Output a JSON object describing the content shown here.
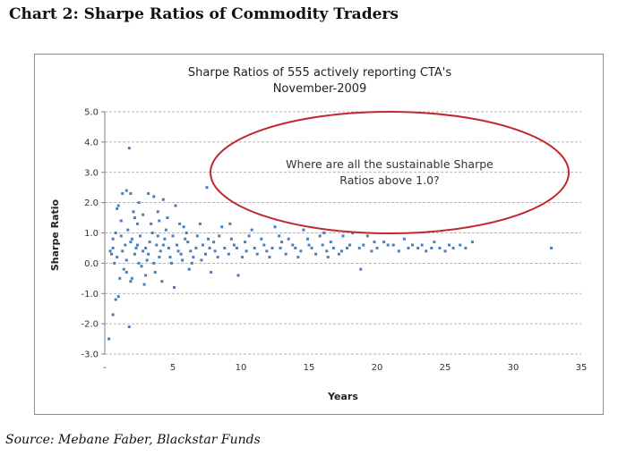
{
  "heading": "Chart 2:  Sharpe Ratios of Commodity Traders",
  "source": "Source: Mebane Faber, Blackstar Funds",
  "colors": {
    "point": "#4a7ebb",
    "ellipse": "#c0282d",
    "grid": "#9a9a9a",
    "axis": "#7f7f7f"
  },
  "chart_data": {
    "type": "scatter",
    "title": [
      "Sharpe Ratios of 555 actively reporting CTA's",
      "November-2009"
    ],
    "xlabel": "Years",
    "ylabel": "Sharpe Ratio",
    "xlim": [
      0,
      35
    ],
    "ylim": [
      -3,
      5
    ],
    "x_ticks": [
      0,
      5,
      10,
      15,
      20,
      25,
      30,
      35
    ],
    "x_tick_labels": [
      "-",
      "5",
      "10",
      "15",
      "20",
      "25",
      "30",
      "35"
    ],
    "y_ticks": [
      5,
      4,
      3,
      2,
      1,
      0,
      -1,
      -2,
      -3
    ],
    "y_tick_labels": [
      "5.0",
      "4.0",
      "3.0",
      "2.0",
      "1.0",
      "0.0",
      "-1.0",
      "-2.0",
      "-3.0"
    ],
    "grid": "horizontal dashed",
    "annotation": [
      "Where are all the sustainable Sharpe",
      "Ratios above 1.0?"
    ],
    "series": [
      {
        "name": "CTA",
        "points": [
          [
            0.3,
            -2.5
          ],
          [
            0.6,
            -1.7
          ],
          [
            0.8,
            -1.2
          ],
          [
            1.0,
            -1.1
          ],
          [
            1.8,
            -2.1
          ],
          [
            1.8,
            3.8
          ],
          [
            7.5,
            2.5
          ],
          [
            1.3,
            2.3
          ],
          [
            1.6,
            2.4
          ],
          [
            1.9,
            2.3
          ],
          [
            3.2,
            2.3
          ],
          [
            3.6,
            2.2
          ],
          [
            4.3,
            2.1
          ],
          [
            2.5,
            2.0
          ],
          [
            5.2,
            1.9
          ],
          [
            0.9,
            1.8
          ],
          [
            2.1,
            1.7
          ],
          [
            2.8,
            1.6
          ],
          [
            3.9,
            1.7
          ],
          [
            4.6,
            1.5
          ],
          [
            1.2,
            1.4
          ],
          [
            2.4,
            1.3
          ],
          [
            3.4,
            1.3
          ],
          [
            5.8,
            1.2
          ],
          [
            1.0,
            1.9
          ],
          [
            2.2,
            1.5
          ],
          [
            4.0,
            1.4
          ],
          [
            4.2,
            -0.6
          ],
          [
            5.1,
            -0.8
          ],
          [
            1.6,
            -0.3
          ],
          [
            2.0,
            -0.5
          ],
          [
            3.0,
            -0.4
          ],
          [
            0.7,
            0.0
          ],
          [
            1.4,
            -0.2
          ],
          [
            2.7,
            -0.1
          ],
          [
            3.7,
            -0.3
          ],
          [
            6.2,
            -0.2
          ],
          [
            7.8,
            -0.3
          ],
          [
            9.8,
            -0.4
          ],
          [
            18.8,
            -0.2
          ],
          [
            1.9,
            -0.6
          ],
          [
            2.9,
            -0.7
          ],
          [
            1.1,
            -0.5
          ],
          [
            5.5,
            1.3
          ],
          [
            6.0,
            1.0
          ],
          [
            7.0,
            1.3
          ],
          [
            8.6,
            1.2
          ],
          [
            9.2,
            1.3
          ],
          [
            10.8,
            1.1
          ],
          [
            12.5,
            1.2
          ],
          [
            14.6,
            1.1
          ],
          [
            16.1,
            1.0
          ],
          [
            17.5,
            0.9
          ],
          [
            18.2,
            1.0
          ],
          [
            19.3,
            0.9
          ],
          [
            20.5,
            0.7
          ],
          [
            21.2,
            0.6
          ],
          [
            22.0,
            0.8
          ],
          [
            23.0,
            0.5
          ],
          [
            24.2,
            0.7
          ],
          [
            25.3,
            0.6
          ],
          [
            26.1,
            0.6
          ],
          [
            27.0,
            0.7
          ],
          [
            32.8,
            0.5
          ],
          [
            20.0,
            0.5
          ],
          [
            21.6,
            0.4
          ],
          [
            23.6,
            0.4
          ],
          [
            25.0,
            0.4
          ],
          [
            26.5,
            0.5
          ],
          [
            19.6,
            0.4
          ],
          [
            22.6,
            0.6
          ],
          [
            24.6,
            0.5
          ],
          [
            0.4,
            0.4
          ],
          [
            0.6,
            0.8
          ],
          [
            0.9,
            0.2
          ],
          [
            1.5,
            0.6
          ],
          [
            2.6,
            0.9
          ],
          [
            3.3,
            0.7
          ],
          [
            4.4,
            0.8
          ],
          [
            5.3,
            0.6
          ],
          [
            6.1,
            0.7
          ],
          [
            6.7,
            0.5
          ],
          [
            7.2,
            0.6
          ],
          [
            8.0,
            0.7
          ],
          [
            8.8,
            0.5
          ],
          [
            9.5,
            0.6
          ],
          [
            10.3,
            0.7
          ],
          [
            11.0,
            0.5
          ],
          [
            11.7,
            0.6
          ],
          [
            12.3,
            0.5
          ],
          [
            13.0,
            0.7
          ],
          [
            13.8,
            0.6
          ],
          [
            14.4,
            0.4
          ],
          [
            15.2,
            0.5
          ],
          [
            16.0,
            0.6
          ],
          [
            16.8,
            0.5
          ],
          [
            17.4,
            0.4
          ],
          [
            18.0,
            0.6
          ],
          [
            18.7,
            0.5
          ],
          [
            2.2,
            0.3
          ],
          [
            3.1,
            0.1
          ],
          [
            4.1,
            0.4
          ],
          [
            4.8,
            0.2
          ],
          [
            5.6,
            0.3
          ],
          [
            6.5,
            0.2
          ],
          [
            7.4,
            0.3
          ],
          [
            8.3,
            0.2
          ],
          [
            9.1,
            0.3
          ],
          [
            10.1,
            0.2
          ],
          [
            11.2,
            0.3
          ],
          [
            12.1,
            0.2
          ],
          [
            13.3,
            0.3
          ],
          [
            14.2,
            0.2
          ],
          [
            15.5,
            0.3
          ],
          [
            16.4,
            0.2
          ],
          [
            17.2,
            0.3
          ],
          [
            1.7,
            1.1
          ],
          [
            2.3,
            0.5
          ],
          [
            3.5,
            1.0
          ],
          [
            4.5,
            1.1
          ],
          [
            5.0,
            0.9
          ],
          [
            5.9,
            0.8
          ],
          [
            6.8,
            0.9
          ],
          [
            7.6,
            0.8
          ],
          [
            8.4,
            0.9
          ],
          [
            9.3,
            0.8
          ],
          [
            10.6,
            0.9
          ],
          [
            11.5,
            0.8
          ],
          [
            12.8,
            0.9
          ],
          [
            13.5,
            0.8
          ],
          [
            14.9,
            0.8
          ],
          [
            15.8,
            0.9
          ],
          [
            16.6,
            0.7
          ],
          [
            0.8,
            1.0
          ],
          [
            1.2,
            0.9
          ],
          [
            2.0,
            0.8
          ],
          [
            3.8,
            0.6
          ],
          [
            4.7,
            0.5
          ],
          [
            1.3,
            0.4
          ],
          [
            1.6,
            0.1
          ],
          [
            2.5,
            0.0
          ],
          [
            3.6,
            0.0
          ],
          [
            4.9,
            0.0
          ],
          [
            5.7,
            0.1
          ],
          [
            6.4,
            0.0
          ],
          [
            7.1,
            0.1
          ],
          [
            3.0,
            0.5
          ],
          [
            3.2,
            0.3
          ],
          [
            4.3,
            0.6
          ],
          [
            2.8,
            0.4
          ],
          [
            1.9,
            0.7
          ],
          [
            0.5,
            0.3
          ],
          [
            0.6,
            0.5
          ],
          [
            2.4,
            0.6
          ],
          [
            3.9,
            0.9
          ],
          [
            4.0,
            0.2
          ],
          [
            5.4,
            0.4
          ],
          [
            6.3,
            0.4
          ],
          [
            7.7,
            0.5
          ],
          [
            8.1,
            0.4
          ],
          [
            9.7,
            0.5
          ],
          [
            10.4,
            0.4
          ],
          [
            11.9,
            0.4
          ],
          [
            12.9,
            0.5
          ],
          [
            14.0,
            0.5
          ],
          [
            15.0,
            0.6
          ],
          [
            16.3,
            0.4
          ],
          [
            17.8,
            0.5
          ],
          [
            19.0,
            0.6
          ],
          [
            19.8,
            0.7
          ],
          [
            20.8,
            0.6
          ],
          [
            22.3,
            0.5
          ],
          [
            23.3,
            0.6
          ],
          [
            24.0,
            0.5
          ],
          [
            25.6,
            0.5
          ]
        ]
      }
    ]
  }
}
